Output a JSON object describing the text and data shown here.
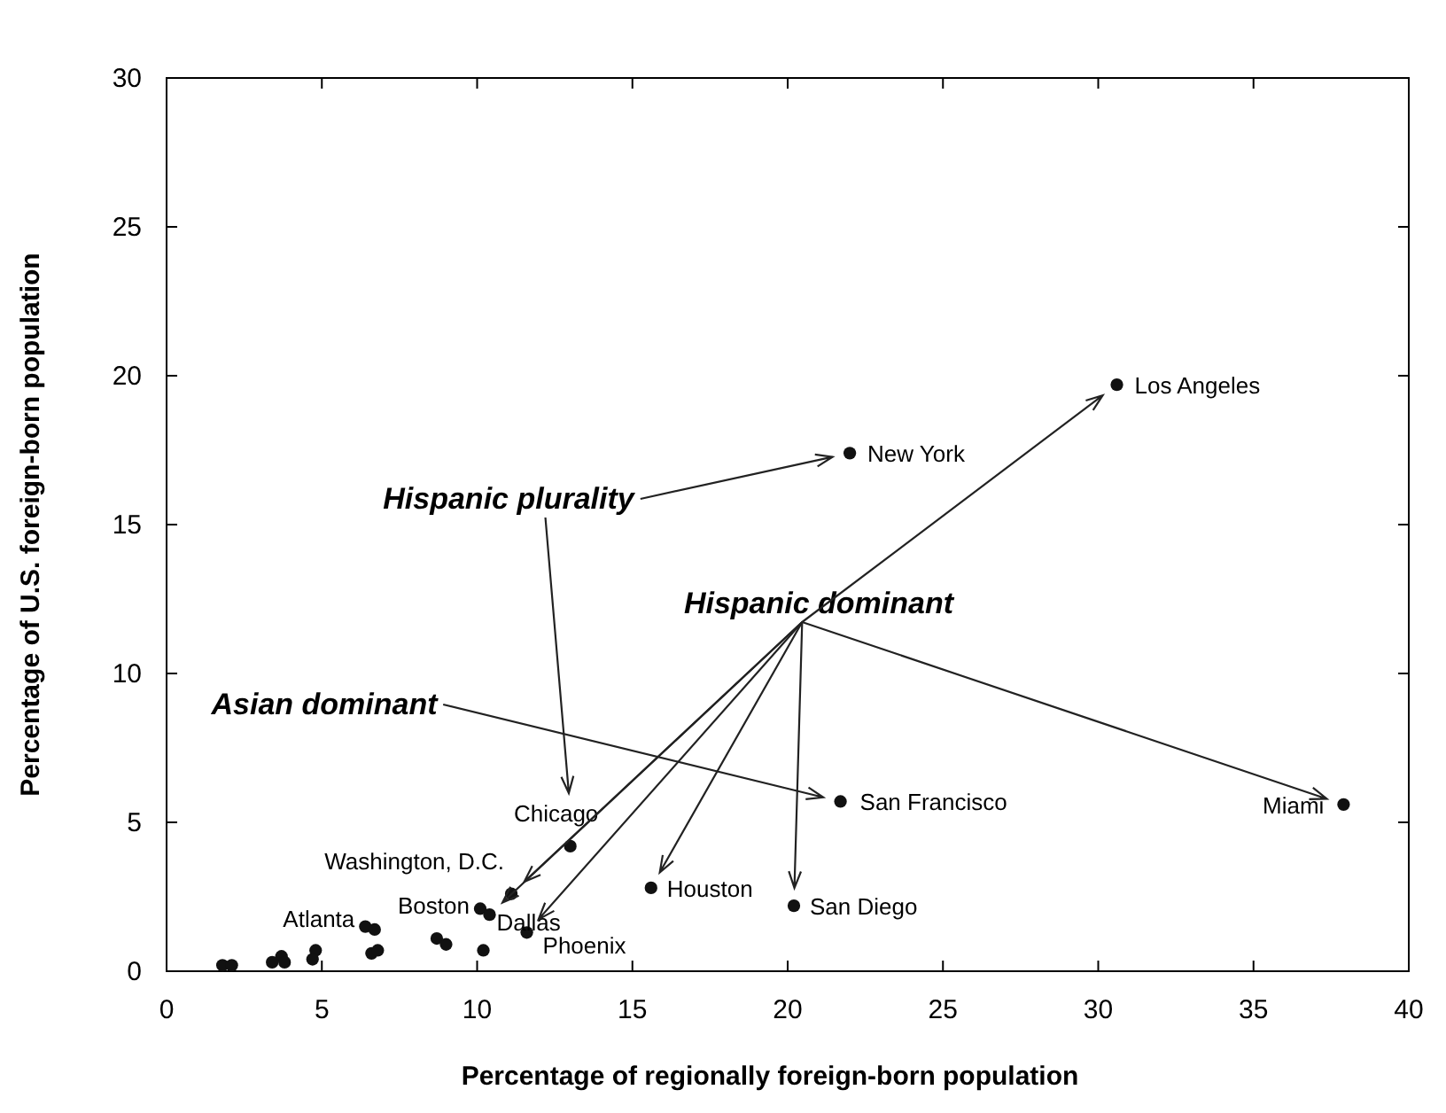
{
  "chart_data": {
    "type": "scatter",
    "xlabel": "Percentage of regionally foreign-born population",
    "ylabel": "Percentage of U.S. foreign-born population",
    "x": [
      30.6,
      22.0,
      21.7,
      37.9,
      13.0,
      11.1,
      10.1,
      10.4,
      11.6,
      15.6,
      20.2,
      6.4,
      6.7,
      10.2,
      8.7,
      9.0,
      6.6,
      6.8,
      4.8,
      4.7,
      3.7,
      3.4,
      3.8,
      1.8,
      2.1
    ],
    "values": [
      19.7,
      17.4,
      5.7,
      5.6,
      4.2,
      2.6,
      2.1,
      1.9,
      1.3,
      2.8,
      2.2,
      1.5,
      1.4,
      0.7,
      1.1,
      0.9,
      0.6,
      0.7,
      0.7,
      0.4,
      0.5,
      0.3,
      0.3,
      0.2,
      0.2
    ],
    "color": "#111111",
    "marker": "circle",
    "xlim": [
      0,
      40
    ],
    "ylim": [
      0,
      30
    ],
    "xticks": [
      0,
      5,
      10,
      15,
      20,
      25,
      30,
      35,
      40
    ],
    "yticks": [
      0,
      5,
      10,
      15,
      20,
      25,
      30
    ],
    "annotations": [
      {
        "text": "Los Angeles",
        "x": 30.6,
        "y": 19.7
      },
      {
        "text": "New York",
        "x": 22.0,
        "y": 17.4
      },
      {
        "text": "San Francisco",
        "x": 21.7,
        "y": 5.7
      },
      {
        "text": "Miami",
        "x": 37.9,
        "y": 5.6
      },
      {
        "text": "Chicago",
        "x": 13.0,
        "y": 4.2
      },
      {
        "text": "Washington, D.C.",
        "x": 11.1,
        "y": 2.6
      },
      {
        "text": "Boston",
        "x": 10.1,
        "y": 2.1
      },
      {
        "text": "Dallas",
        "x": 10.4,
        "y": 1.9
      },
      {
        "text": "Phoenix",
        "x": 11.6,
        "y": 1.3
      },
      {
        "text": "Houston",
        "x": 15.6,
        "y": 2.8
      },
      {
        "text": "San Diego",
        "x": 20.2,
        "y": 2.2
      },
      {
        "text": "Atlanta",
        "x": 6.4,
        "y": 1.5
      },
      "Hispanic plurality",
      "Hispanic dominant",
      "Asian dominant"
    ]
  }
}
